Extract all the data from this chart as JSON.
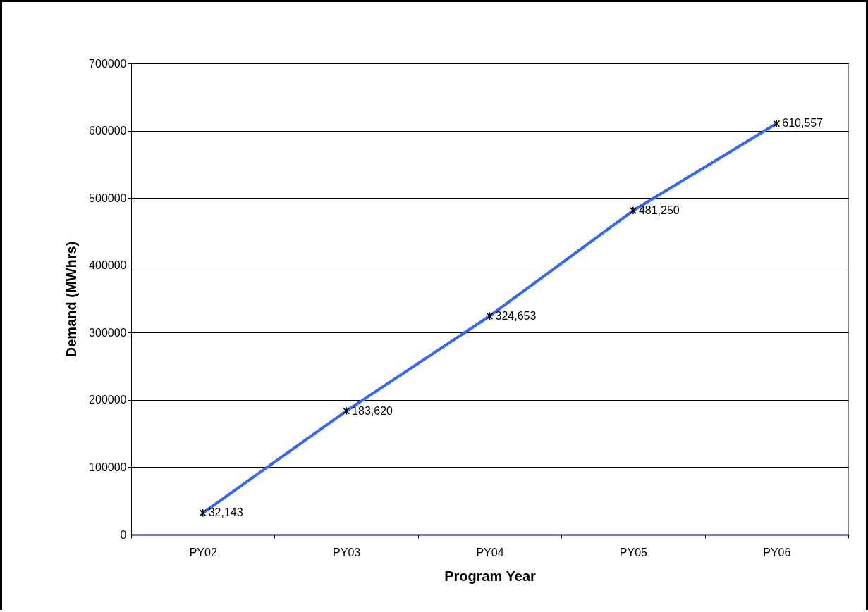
{
  "chart_data": {
    "type": "line",
    "xlabel": "Program Year",
    "ylabel": "Demand (MWhrs)",
    "categories": [
      "PY02",
      "PY03",
      "PY04",
      "PY05",
      "PY06"
    ],
    "series": [
      {
        "color": "#3366ff",
        "values": [
          32143,
          183620,
          324653,
          481250,
          610557
        ]
      }
    ],
    "value_labels": [
      "32,143",
      "183,620",
      "324,653",
      "481,250",
      "610,557"
    ],
    "ylim": [
      0,
      700000
    ],
    "yticks": [
      0,
      100000,
      200000,
      300000,
      400000,
      500000,
      600000,
      700000
    ],
    "grid": "y",
    "marker": "cross",
    "line_style": "solid"
  }
}
